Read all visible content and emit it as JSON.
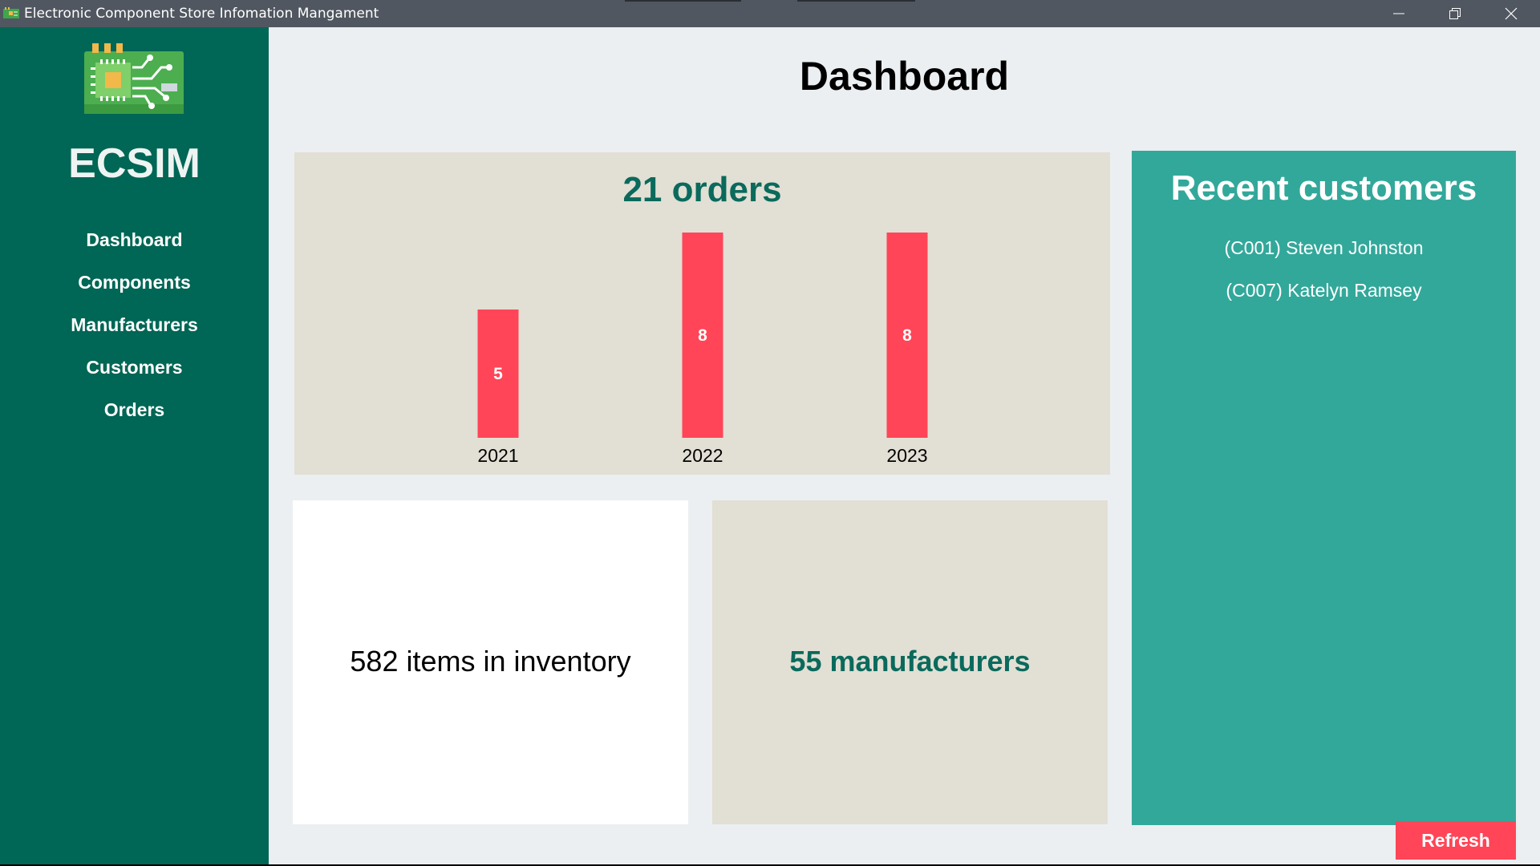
{
  "window": {
    "title": "Electronic Component Store Infomation Mangament",
    "icons": [
      "app-icon",
      "minimize-icon",
      "restore-icon",
      "close-icon"
    ]
  },
  "sidebar": {
    "brand": "ECSIM",
    "logo_icon": "circuit-board-icon",
    "items": [
      {
        "label": "Dashboard"
      },
      {
        "label": "Components"
      },
      {
        "label": "Manufacturers"
      },
      {
        "label": "Customers"
      },
      {
        "label": "Orders"
      }
    ]
  },
  "main": {
    "title": "Dashboard",
    "orders": {
      "title": "21 orders"
    },
    "inventory": {
      "text": "582 items in inventory"
    },
    "manufacturers": {
      "text": "55 manufacturers"
    },
    "recent_customers": {
      "title": "Recent customers",
      "items": [
        "(C001) Steven Johnston",
        "(C007) Katelyn Ramsey"
      ]
    },
    "refresh_label": "Refresh"
  },
  "colors": {
    "sidebar": "#006655",
    "accent_red": "#ff4557",
    "teal_card": "#32a89a",
    "beige_card": "#e2dfd4",
    "title_teal": "#0a6a5c"
  },
  "chart_data": {
    "type": "bar",
    "categories": [
      "2021",
      "2022",
      "2023"
    ],
    "values": [
      5,
      8,
      8
    ],
    "title": "21 orders",
    "ylim": [
      0,
      8
    ]
  }
}
